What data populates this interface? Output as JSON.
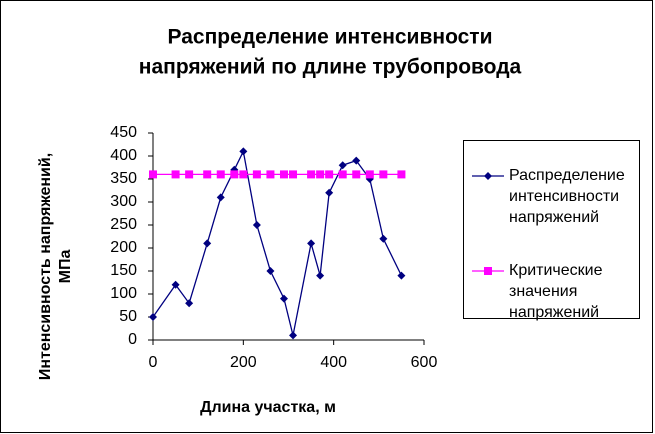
{
  "chart_data": {
    "type": "line",
    "title": [
      "Распределение интенсивности",
      "напряжений по длине трубопровода"
    ],
    "x_label": "Длина участка, м",
    "y_label": [
      "Интенсивность напряжений,",
      "МПа"
    ],
    "x": [
      0,
      50,
      80,
      120,
      150,
      180,
      200,
      230,
      260,
      290,
      310,
      350,
      370,
      390,
      420,
      450,
      480,
      510,
      550
    ],
    "series": [
      {
        "name": "Распределение интенсивности напряжений",
        "color": "#000080",
        "marker": "diamond",
        "values": [
          50,
          120,
          80,
          210,
          310,
          370,
          410,
          250,
          150,
          90,
          10,
          210,
          140,
          320,
          380,
          390,
          350,
          220,
          140
        ]
      },
      {
        "name": "Критические значения напряжений",
        "color": "#ff00ff",
        "marker": "square",
        "values": [
          360,
          360,
          360,
          360,
          360,
          360,
          360,
          360,
          360,
          360,
          360,
          360,
          360,
          360,
          360,
          360,
          360,
          360,
          360
        ]
      }
    ],
    "xlim": [
      0,
      600
    ],
    "xticks": [
      0,
      200,
      400,
      600
    ],
    "ylim": [
      0,
      450
    ],
    "yticks": [
      0,
      50,
      100,
      150,
      200,
      250,
      300,
      350,
      400,
      450
    ],
    "grid": false,
    "legend": "right"
  }
}
